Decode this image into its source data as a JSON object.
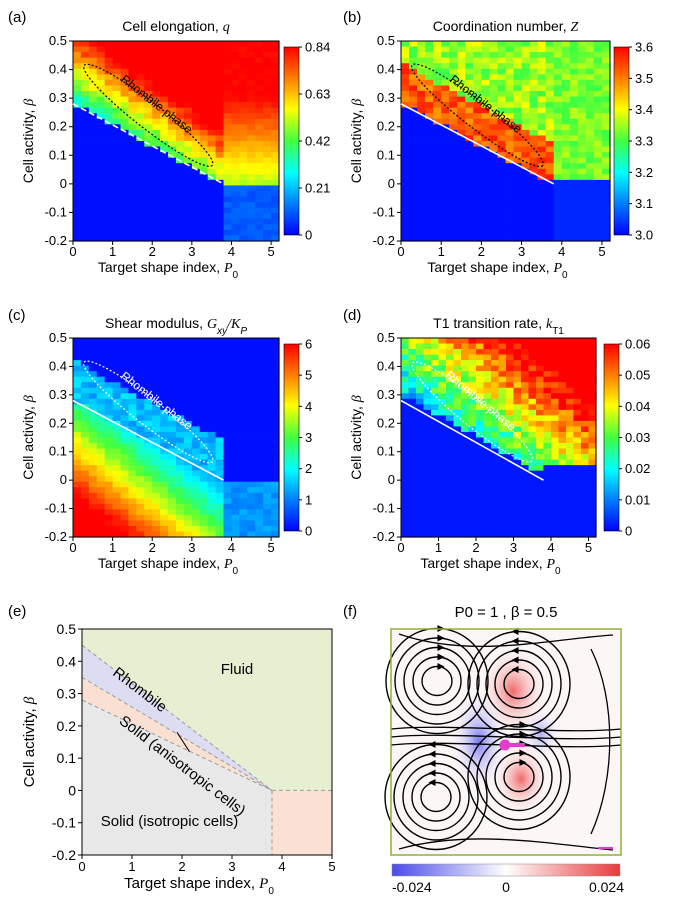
{
  "panels": [
    {
      "letter": "(a)",
      "title": "Cell elongation, ",
      "sym": "q",
      "colorbar": {
        "ticks": [
          "0.84",
          "0.63",
          "0.42",
          "0.21",
          "0"
        ],
        "top": 0.84,
        "bottom": 0.0
      },
      "annotation": "Rhombile phase"
    },
    {
      "letter": "(b)",
      "title": "Coordination number, ",
      "sym": "Z",
      "colorbar": {
        "ticks": [
          "3.6",
          "3.5",
          "3.4",
          "3.3",
          "3.2",
          "3.1",
          "3.0"
        ],
        "top": 3.6,
        "bottom": 3.0
      },
      "annotation": "Rhombile phase"
    },
    {
      "letter": "(c)",
      "title": "Shear modulus, ",
      "sym": "Gxy/KP",
      "colorbar": {
        "ticks": [
          "6",
          "5",
          "4",
          "3",
          "2",
          "1",
          "0"
        ],
        "top": 6,
        "bottom": 0
      },
      "annotation": "Rhombile phase"
    },
    {
      "letter": "(d)",
      "title": "T1 transition rate, ",
      "sym": "kT1",
      "colorbar": {
        "ticks": [
          "0.06",
          "0.05",
          "0.04",
          "0.03",
          "0.02",
          "0.01",
          "0"
        ],
        "top": 0.06,
        "bottom": 0
      },
      "annotation": "Rhombile phase"
    }
  ],
  "axes": {
    "xlabel": "Target shape index, ",
    "xsym": "P0",
    "ylabel": "Cell activity, ",
    "ysym": "β",
    "xticks": [
      "0",
      "1",
      "2",
      "3",
      "4",
      "5"
    ],
    "yticks": [
      "0.5",
      "0.4",
      "0.3",
      "0.2",
      "0.1",
      "0",
      "-0.1",
      "-0.2"
    ],
    "xlim": [
      0,
      5.2
    ],
    "ylim": [
      -0.2,
      0.5
    ]
  },
  "phase_diagram": {
    "letter": "(e)",
    "regions": {
      "fluid": "Fluid",
      "rhombile": "Rhombile",
      "solid_aniso": "Solid (anisotropic cells)",
      "solid_iso": "Solid (isotropic cells)"
    },
    "colors": {
      "fluid": "#e6efd2",
      "rhombile": "#dcdcf2",
      "solid_aniso": "#f9e0d2",
      "solid_iso": "#e8e8e8",
      "right_block": "#fbe1d4"
    }
  },
  "flow_panel": {
    "letter": "(f)",
    "title": "P0 = 1 , β = 0.5",
    "colorbar_ticks": [
      "-0.024",
      "0",
      "0.024"
    ],
    "frame_color": "#8fb03a",
    "arrow_color": "#e43ccf"
  },
  "chart_data": [
    {
      "type": "heatmap",
      "title": "Cell elongation, q",
      "xlabel": "Target shape index, P0",
      "ylabel": "Cell activity, β",
      "x_range": [
        0,
        5.2
      ],
      "y_range": [
        -0.2,
        0.5
      ],
      "colorbar_range": [
        0,
        0.84
      ],
      "annotation": "Rhombile phase"
    },
    {
      "type": "heatmap",
      "title": "Coordination number, Z",
      "xlabel": "Target shape index, P0",
      "ylabel": "Cell activity, β",
      "x_range": [
        0,
        5.2
      ],
      "y_range": [
        -0.2,
        0.5
      ],
      "colorbar_range": [
        3.0,
        3.6
      ],
      "annotation": "Rhombile phase"
    },
    {
      "type": "heatmap",
      "title": "Shear modulus, Gxy/KP",
      "xlabel": "Target shape index, P0",
      "ylabel": "Cell activity, β",
      "x_range": [
        0,
        5.2
      ],
      "y_range": [
        -0.2,
        0.5
      ],
      "colorbar_range": [
        0,
        6
      ],
      "annotation": "Rhombile phase"
    },
    {
      "type": "heatmap",
      "title": "T1 transition rate, kT1",
      "xlabel": "Target shape index, P0",
      "ylabel": "Cell activity, β",
      "x_range": [
        0,
        5.2
      ],
      "y_range": [
        -0.2,
        0.5
      ],
      "colorbar_range": [
        0,
        0.06
      ],
      "annotation": "Rhombile phase"
    },
    {
      "type": "area",
      "xlabel": "Target shape index, P0",
      "ylabel": "Cell activity, β",
      "xlim": [
        0,
        5
      ],
      "ylim": [
        -0.2,
        0.5
      ],
      "boundaries": [
        {
          "x": [
            0,
            3.8
          ],
          "y": [
            0.45,
            0.0
          ]
        },
        {
          "x": [
            0,
            3.8
          ],
          "y": [
            0.35,
            0.0
          ]
        },
        {
          "x": [
            0,
            3.8
          ],
          "y": [
            0.28,
            0.0
          ]
        },
        {
          "x": [
            3.8,
            3.8
          ],
          "y": [
            0.0,
            -0.2
          ]
        }
      ],
      "regions": [
        "Fluid",
        "Rhombile",
        "Solid (anisotropic cells)",
        "Solid (isotropic cells)"
      ]
    },
    {
      "type": "other",
      "title": "P0 = 1 , β = 0.5",
      "colorbar_range": [
        -0.024,
        0.024
      ]
    }
  ]
}
